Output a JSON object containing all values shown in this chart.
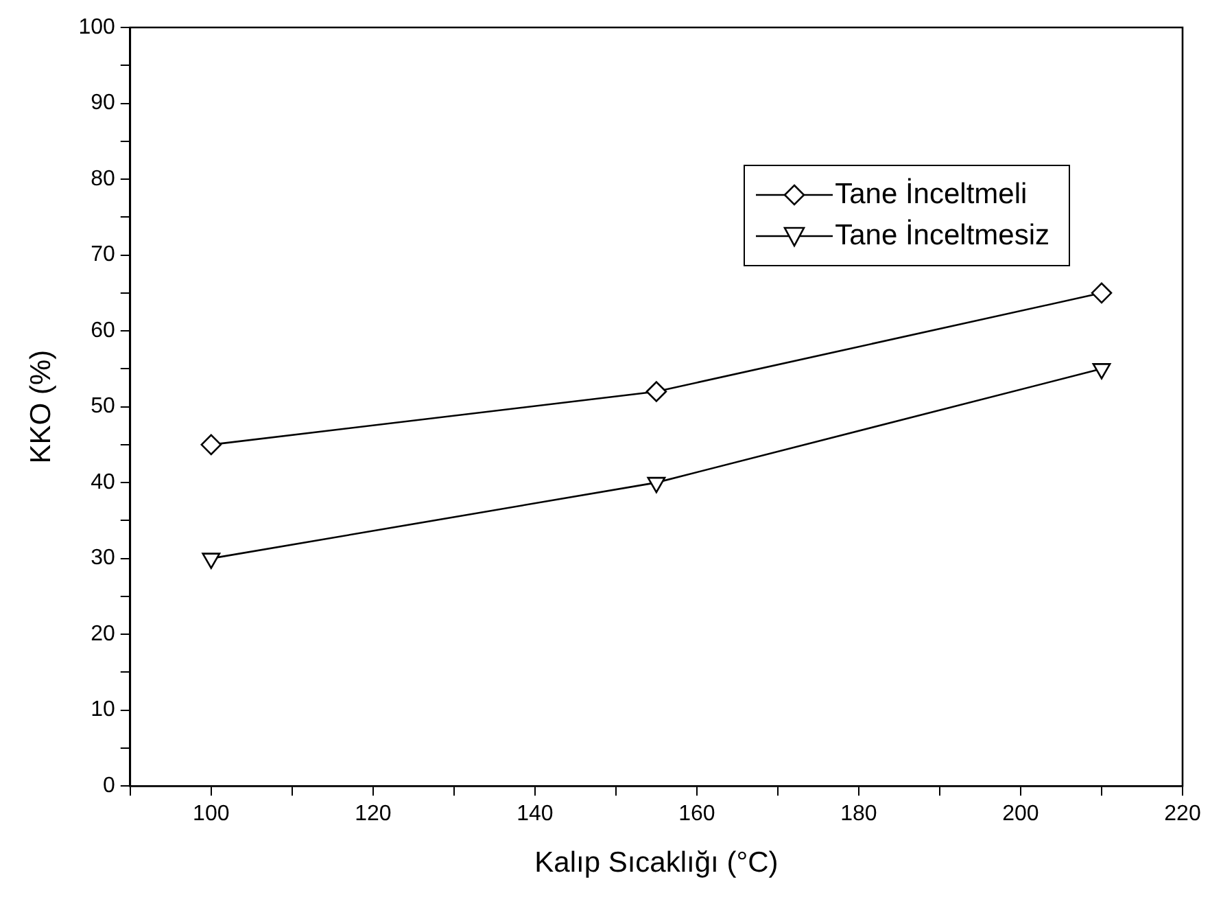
{
  "chart_data": {
    "type": "line",
    "xlabel": "Kalıp Sıcaklığı (°C)",
    "ylabel": "KKO (%)",
    "xlim": [
      90,
      220
    ],
    "xticks": [
      {
        "value": 90,
        "label": null
      },
      100,
      {
        "value": 110,
        "label": null
      },
      120,
      {
        "value": 130,
        "label": null
      },
      140,
      {
        "value": 150,
        "label": null
      },
      160,
      {
        "value": 170,
        "label": null
      },
      180,
      {
        "value": 190,
        "label": null
      },
      200,
      {
        "value": 210,
        "label": null
      },
      220
    ],
    "ylim": [
      0,
      100
    ],
    "yticks": [
      0,
      {
        "value": 5,
        "label": null
      },
      10,
      {
        "value": 15,
        "label": null
      },
      20,
      {
        "value": 25,
        "label": null
      },
      30,
      {
        "value": 35,
        "label": null
      },
      40,
      {
        "value": 45,
        "label": null
      },
      50,
      {
        "value": 55,
        "label": null
      },
      60,
      {
        "value": 65,
        "label": null
      },
      70,
      {
        "value": 75,
        "label": null
      },
      80,
      {
        "value": 85,
        "label": null
      },
      90,
      {
        "value": 95,
        "label": null
      },
      100
    ],
    "x": [
      100,
      155,
      210
    ],
    "series": [
      {
        "name": "Tane İnceltmeli",
        "color": "#000000",
        "values": [
          45,
          52,
          65
        ],
        "marker": "diamond"
      },
      {
        "name": "Tane İnceltmesiz",
        "color": "#000000",
        "values": [
          30,
          40,
          55
        ],
        "marker": "triangle"
      }
    ],
    "grid": false,
    "legend": "top right",
    "line_style": "solid"
  }
}
